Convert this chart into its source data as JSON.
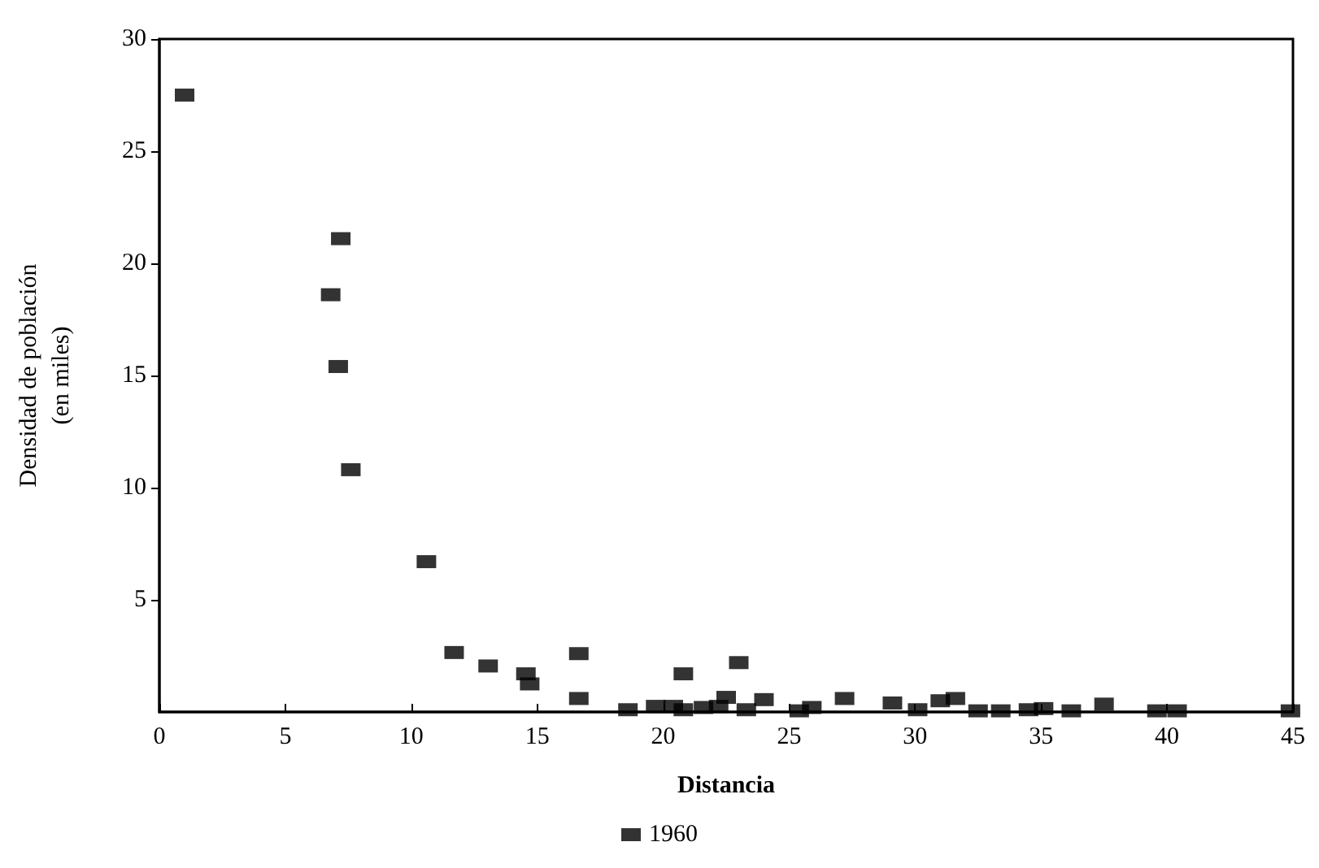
{
  "chart_data": {
    "type": "scatter",
    "xlabel": "Distancia",
    "ylabel": "Densidad de población\n(en miles)",
    "xlim": [
      0,
      45
    ],
    "xticks": [
      0,
      5,
      10,
      15,
      20,
      25,
      30,
      35,
      40,
      45
    ],
    "ylim": [
      0,
      30
    ],
    "yticks": [
      5,
      10,
      15,
      20,
      25,
      30
    ],
    "grid": false,
    "legend": "bottom",
    "marker": "square",
    "series": [
      {
        "name": "1960",
        "color": "#000000",
        "x": [
          1,
          6.8,
          7.2,
          7.1,
          7.6,
          10.6,
          11.7,
          13.05,
          14.55,
          14.7,
          16.65,
          16.65,
          18.6,
          19.7,
          20.4,
          20.8,
          20.8,
          21.6,
          22.2,
          22.5,
          23.0,
          23.3,
          24.0,
          25.4,
          25.9,
          27.2,
          29.1,
          30.1,
          31.0,
          31.6,
          32.5,
          33.4,
          34.5,
          35.1,
          36.2,
          37.5,
          39.6,
          40.4,
          44.9
        ],
        "values": [
          27.5,
          18.6,
          21.1,
          15.4,
          10.8,
          6.7,
          2.65,
          2.05,
          1.7,
          1.25,
          2.6,
          0.6,
          0.1,
          0.25,
          0.25,
          0.1,
          1.7,
          0.2,
          0.25,
          0.65,
          2.2,
          0.1,
          0.55,
          0.05,
          0.2,
          0.6,
          0.4,
          0.1,
          0.5,
          0.6,
          0.05,
          0.05,
          0.1,
          0.15,
          0.05,
          0.35,
          0.05,
          0.05,
          0.05
        ]
      }
    ]
  }
}
